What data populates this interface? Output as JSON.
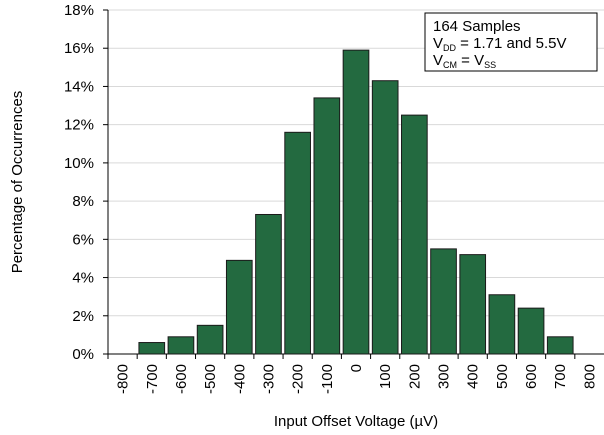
{
  "chart_data": {
    "type": "bar",
    "xlabel": "Input Offset Voltage (µV)",
    "ylabel": "Percentage of Occurrences",
    "categories": [
      "-800",
      "-700",
      "-600",
      "-500",
      "-400",
      "-300",
      "-200",
      "-100",
      "0",
      "100",
      "200",
      "300",
      "400",
      "500",
      "600",
      "700",
      "800"
    ],
    "values": [
      0,
      0.6,
      0.9,
      1.5,
      4.9,
      7.3,
      11.6,
      13.4,
      15.9,
      14.3,
      12.5,
      5.5,
      5.2,
      3.1,
      2.4,
      0.9,
      0
    ],
    "color": "#236a40",
    "ylim": [
      0,
      18
    ],
    "yticks": [
      {
        "value": 0,
        "label": "0%"
      },
      {
        "value": 2,
        "label": "2%"
      },
      {
        "value": 4,
        "label": "4%"
      },
      {
        "value": 6,
        "label": "6%"
      },
      {
        "value": 8,
        "label": "8%"
      },
      {
        "value": 10,
        "label": "10%"
      },
      {
        "value": 12,
        "label": "12%"
      },
      {
        "value": 14,
        "label": "14%"
      },
      {
        "value": 16,
        "label": "16%"
      },
      {
        "value": 18,
        "label": "18%"
      }
    ],
    "grid": true,
    "annotation": [
      [
        {
          "text": "164 Samples"
        }
      ],
      [
        {
          "text": "V"
        },
        {
          "sub": "DD"
        },
        {
          "text": " = 1.71 and 5.5V"
        }
      ],
      [
        {
          "text": "V"
        },
        {
          "sub": "CM"
        },
        {
          "text": " = V"
        },
        {
          "sub": "SS"
        }
      ]
    ]
  }
}
